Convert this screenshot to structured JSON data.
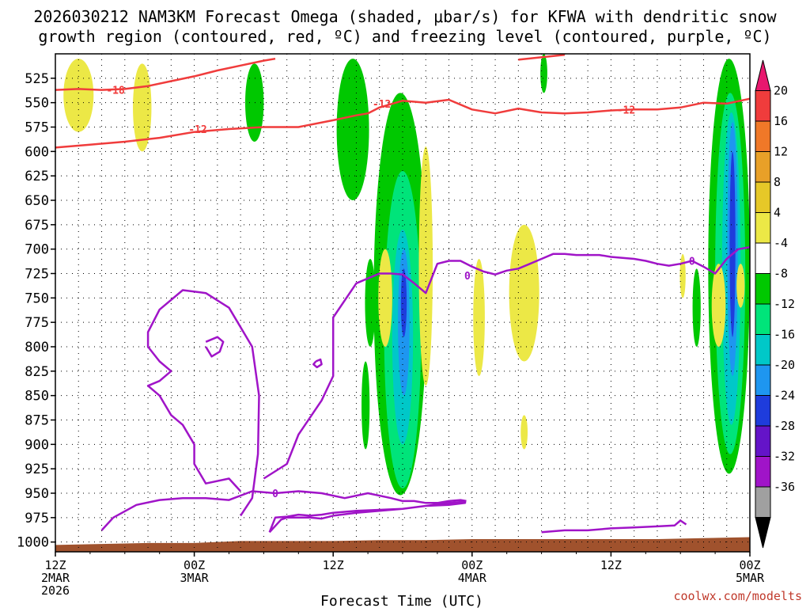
{
  "chart_data": {
    "type": "heatmap",
    "title_line1": "2026030212 NAM3KM Forecast Omega (shaded, μbar/s) for KFWA with dendritic snow",
    "title_line2": "growth region (contoured, red, ºC) and freezing level (contoured, purple, ºC)",
    "xlabel": "Forecast Time (UTC)",
    "x_range_hours": [
      0,
      60
    ],
    "x_ticks": [
      {
        "hour": 0,
        "lines": [
          "12Z",
          "2MAR",
          "2026"
        ]
      },
      {
        "hour": 12,
        "lines": [
          "00Z",
          "3MAR"
        ]
      },
      {
        "hour": 24,
        "lines": [
          "12Z"
        ]
      },
      {
        "hour": 36,
        "lines": [
          "00Z",
          "4MAR"
        ]
      },
      {
        "hour": 48,
        "lines": [
          "12Z"
        ]
      },
      {
        "hour": 60,
        "lines": [
          "00Z",
          "5MAR"
        ]
      }
    ],
    "ylabel": "",
    "y_range_mb": [
      500,
      1010
    ],
    "y_ticks": [
      525,
      550,
      575,
      600,
      625,
      650,
      675,
      700,
      725,
      750,
      775,
      800,
      825,
      850,
      875,
      900,
      925,
      950,
      975,
      1000
    ],
    "grid": "dotted",
    "colorbar": {
      "labels": [
        "20",
        "16",
        "12",
        "8",
        "4",
        "-4",
        "-8",
        "-12",
        "-16",
        "-20",
        "-24",
        "-28",
        "-32",
        "-36"
      ],
      "colors": [
        "#e8186e",
        "#f03c3c",
        "#f07828",
        "#e8a028",
        "#e6c828",
        "#ece846",
        "#ffffff",
        "#00c800",
        "#00e47a",
        "#00c8c8",
        "#1e96f0",
        "#1e3cdc",
        "#6414c8",
        "#a014c8",
        "#a0a0a0",
        "#000000"
      ]
    },
    "omega_regions": [
      {
        "level": "-8",
        "color": "#00c800",
        "cx": 17.2,
        "p": [
          510,
          590
        ],
        "w": 0.8
      },
      {
        "level": "-8",
        "color": "#00c800",
        "cx": 25.7,
        "p": [
          505,
          650
        ],
        "w": 1.4
      },
      {
        "level": "-8",
        "color": "#00c800",
        "cx": 29.8,
        "p": [
          540,
          952
        ],
        "w": 2.3
      },
      {
        "level": "-12",
        "color": "#00e47a",
        "cx": 30.0,
        "p": [
          620,
          945
        ],
        "w": 1.6
      },
      {
        "level": "-16",
        "color": "#00c8c8",
        "cx": 30.0,
        "p": [
          680,
          900
        ],
        "w": 0.9
      },
      {
        "level": "-20",
        "color": "#1e96f0",
        "cx": 30.1,
        "p": [
          700,
          850
        ],
        "w": 0.5
      },
      {
        "level": "-24",
        "color": "#1e3cdc",
        "cx": 30.1,
        "p": [
          720,
          790
        ],
        "w": 0.25
      },
      {
        "level": "-8",
        "color": "#00c800",
        "cx": 27.2,
        "p": [
          710,
          800
        ],
        "w": 0.45
      },
      {
        "level": "-8",
        "color": "#00c800",
        "cx": 26.8,
        "p": [
          815,
          905
        ],
        "w": 0.35
      },
      {
        "level": "-8",
        "color": "#00c800",
        "cx": 42.2,
        "p": [
          500,
          540
        ],
        "w": 0.3
      },
      {
        "level": "-8",
        "color": "#00c800",
        "cx": 58.2,
        "p": [
          505,
          930
        ],
        "w": 1.8
      },
      {
        "level": "-12",
        "color": "#00e47a",
        "cx": 58.3,
        "p": [
          540,
          910
        ],
        "w": 1.3
      },
      {
        "level": "-16",
        "color": "#00c8c8",
        "cx": 58.4,
        "p": [
          560,
          880
        ],
        "w": 0.8
      },
      {
        "level": "-20",
        "color": "#1e96f0",
        "cx": 58.5,
        "p": [
          570,
          830
        ],
        "w": 0.45
      },
      {
        "level": "-24",
        "color": "#1e3cdc",
        "cx": 58.5,
        "p": [
          600,
          790
        ],
        "w": 0.25
      },
      {
        "level": "-8",
        "color": "#00c800",
        "cx": 55.4,
        "p": [
          720,
          800
        ],
        "w": 0.35
      },
      {
        "level": "4",
        "color": "#ece846",
        "cx": 2.0,
        "p": [
          505,
          580
        ],
        "w": 1.3
      },
      {
        "level": "4",
        "color": "#ece846",
        "cx": 7.5,
        "p": [
          510,
          600
        ],
        "w": 0.8
      },
      {
        "level": "4",
        "color": "#ece846",
        "cx": 28.5,
        "p": [
          700,
          800
        ],
        "w": 0.6
      },
      {
        "level": "4",
        "color": "#ece846",
        "cx": 32.0,
        "p": [
          595,
          840
        ],
        "w": 0.6
      },
      {
        "level": "4",
        "color": "#ece846",
        "cx": 36.6,
        "p": [
          710,
          830
        ],
        "w": 0.5
      },
      {
        "level": "4",
        "color": "#ece846",
        "cx": 40.5,
        "p": [
          675,
          815
        ],
        "w": 1.3
      },
      {
        "level": "4",
        "color": "#ece846",
        "cx": 40.5,
        "p": [
          870,
          905
        ],
        "w": 0.3
      },
      {
        "level": "4",
        "color": "#ece846",
        "cx": 54.2,
        "p": [
          705,
          750
        ],
        "w": 0.25
      },
      {
        "level": "4",
        "color": "#ece846",
        "cx": 57.3,
        "p": [
          715,
          800
        ],
        "w": 0.6
      },
      {
        "level": "4",
        "color": "#ece846",
        "cx": 59.2,
        "p": [
          715,
          760
        ],
        "w": 0.35
      }
    ],
    "temperature_contours": [
      {
        "label": "-18",
        "color": "#f03c3c",
        "label_at": [
          5.2,
          537
        ],
        "points": [
          [
            0,
            537
          ],
          [
            2,
            536
          ],
          [
            4,
            537
          ],
          [
            6,
            536
          ],
          [
            8,
            533
          ],
          [
            10,
            528
          ],
          [
            12,
            523
          ],
          [
            14,
            517
          ],
          [
            16,
            512
          ],
          [
            18,
            507
          ],
          [
            19,
            505
          ]
        ]
      },
      {
        "label": "-12",
        "color": "#f03c3c",
        "label_at": [
          12.3,
          577
        ],
        "points": [
          [
            0,
            596
          ],
          [
            3,
            593
          ],
          [
            6,
            590
          ],
          [
            9,
            586
          ],
          [
            12,
            580
          ],
          [
            15,
            577
          ],
          [
            18,
            575
          ],
          [
            21,
            575
          ],
          [
            24,
            568
          ],
          [
            26,
            563
          ],
          [
            27,
            561
          ],
          [
            28,
            555
          ],
          [
            30,
            548
          ],
          [
            32,
            550
          ],
          [
            34,
            547
          ],
          [
            36,
            557
          ],
          [
            38,
            561
          ],
          [
            40,
            556
          ],
          [
            42,
            560
          ],
          [
            44,
            561
          ],
          [
            46,
            560
          ],
          [
            48,
            558
          ],
          [
            50,
            557
          ],
          [
            52,
            557
          ],
          [
            54,
            555
          ],
          [
            56,
            550
          ],
          [
            58,
            551
          ],
          [
            60,
            546
          ]
        ],
        "label_at_2": [
          28.2,
          551
        ],
        "label_at_3": [
          49.3,
          557
        ]
      },
      {
        "label": "-12",
        "color": "#f03c3c",
        "points": [
          [
            40,
            506
          ],
          [
            44,
            501
          ]
        ]
      }
    ],
    "freezing_contours": [
      {
        "label": "0",
        "color": "#a014c8",
        "label_at": [
          35.6,
          727
        ],
        "points": [
          [
            16,
            973
          ],
          [
            17,
            955
          ],
          [
            17.5,
            910
          ],
          [
            17.6,
            850
          ],
          [
            17,
            800
          ],
          [
            15,
            760
          ],
          [
            13,
            745
          ],
          [
            11,
            742
          ],
          [
            9,
            762
          ],
          [
            8,
            785
          ],
          [
            8,
            800
          ],
          [
            9,
            815
          ],
          [
            10,
            825
          ],
          [
            9,
            835
          ],
          [
            8,
            840
          ],
          [
            9,
            850
          ],
          [
            10,
            870
          ],
          [
            11,
            880
          ],
          [
            12,
            900
          ],
          [
            12,
            920
          ],
          [
            13,
            940
          ],
          [
            15,
            935
          ],
          [
            16,
            948
          ]
        ]
      },
      {
        "label": "0",
        "color": "#a014c8",
        "label_at": [
          19.0,
          950
        ],
        "points": [
          [
            4,
            988
          ],
          [
            5,
            975
          ],
          [
            7,
            962
          ],
          [
            9,
            957
          ],
          [
            11,
            955
          ],
          [
            13,
            955
          ],
          [
            15,
            957
          ],
          [
            17,
            948
          ],
          [
            19,
            950
          ],
          [
            21,
            948
          ],
          [
            23,
            950
          ],
          [
            25,
            955
          ],
          [
            27,
            950
          ],
          [
            29,
            955
          ],
          [
            30,
            958
          ],
          [
            31,
            958
          ],
          [
            32,
            960
          ],
          [
            33,
            960
          ],
          [
            34,
            958
          ],
          [
            35,
            957
          ],
          [
            35.5,
            958
          ]
        ]
      },
      {
        "label": "0",
        "color": "#a014c8",
        "label_at": [
          55.0,
          712
        ],
        "points": [
          [
            18,
            935
          ],
          [
            20,
            920
          ],
          [
            21,
            890
          ],
          [
            23,
            855
          ],
          [
            24,
            830
          ],
          [
            24,
            800
          ],
          [
            24,
            770
          ],
          [
            26,
            735
          ],
          [
            28,
            725
          ],
          [
            29,
            725
          ],
          [
            30,
            726
          ],
          [
            31,
            735
          ],
          [
            32,
            745
          ],
          [
            33,
            715
          ],
          [
            34,
            712
          ],
          [
            35,
            712
          ],
          [
            36,
            718
          ],
          [
            37,
            723
          ],
          [
            38,
            726
          ],
          [
            39,
            722
          ],
          [
            40,
            720
          ],
          [
            41,
            715
          ],
          [
            42,
            710
          ],
          [
            43,
            705
          ],
          [
            44,
            705
          ],
          [
            45,
            706
          ],
          [
            46,
            706
          ],
          [
            47,
            706
          ],
          [
            48,
            708
          ],
          [
            49,
            709
          ],
          [
            50,
            710
          ],
          [
            51,
            712
          ],
          [
            52,
            715
          ],
          [
            53,
            717
          ],
          [
            54,
            715
          ],
          [
            55,
            712
          ],
          [
            56,
            718
          ],
          [
            57,
            725
          ],
          [
            58,
            710
          ],
          [
            59,
            700
          ],
          [
            60,
            698
          ]
        ]
      },
      {
        "label": "",
        "color": "#a014c8",
        "points": [
          [
            18.5,
            990
          ],
          [
            19,
            975
          ],
          [
            20,
            974
          ],
          [
            21,
            972
          ],
          [
            22,
            973
          ],
          [
            23,
            972
          ],
          [
            24,
            970
          ],
          [
            26,
            968
          ],
          [
            28,
            967
          ],
          [
            30,
            966
          ],
          [
            32,
            963
          ],
          [
            34,
            960
          ],
          [
            35,
            959
          ],
          [
            35.4,
            958
          ],
          [
            35.4,
            960
          ],
          [
            34,
            962
          ],
          [
            32,
            963
          ],
          [
            30,
            966
          ],
          [
            28,
            968
          ],
          [
            26,
            970
          ],
          [
            24,
            973
          ],
          [
            23,
            976
          ],
          [
            22,
            975
          ],
          [
            20,
            975
          ],
          [
            19.5,
            977
          ],
          [
            18.5,
            990
          ]
        ]
      },
      {
        "label": "",
        "color": "#a014c8",
        "points": [
          [
            42,
            990
          ],
          [
            44,
            988
          ],
          [
            46,
            988
          ],
          [
            48,
            986
          ],
          [
            50,
            985
          ],
          [
            52,
            984
          ],
          [
            53.5,
            983
          ],
          [
            54,
            978
          ],
          [
            54.5,
            982
          ]
        ]
      },
      {
        "label": "",
        "color": "#a014c8",
        "points": [
          [
            13,
            795
          ],
          [
            14,
            790
          ],
          [
            14.5,
            795
          ],
          [
            14.2,
            805
          ],
          [
            13.5,
            810
          ],
          [
            13,
            800
          ]
        ]
      },
      {
        "label": "",
        "color": "#a014c8",
        "points": [
          [
            22.5,
            815
          ],
          [
            22.9,
            813
          ],
          [
            23.0,
            818
          ],
          [
            22.6,
            821
          ],
          [
            22.3,
            818
          ],
          [
            22.5,
            815
          ]
        ]
      }
    ],
    "terrain": {
      "color": "#a0522d",
      "surface_mb": [
        [
          0,
          1003
        ],
        [
          4,
          1002
        ],
        [
          8,
          1001
        ],
        [
          12,
          1001
        ],
        [
          16,
          999
        ],
        [
          20,
          999
        ],
        [
          24,
          999
        ],
        [
          28,
          998
        ],
        [
          32,
          998
        ],
        [
          36,
          997
        ],
        [
          40,
          997
        ],
        [
          44,
          997
        ],
        [
          48,
          997
        ],
        [
          52,
          997
        ],
        [
          56,
          996
        ],
        [
          60,
          995
        ]
      ]
    }
  },
  "credit": "coolwx.com/modelts"
}
